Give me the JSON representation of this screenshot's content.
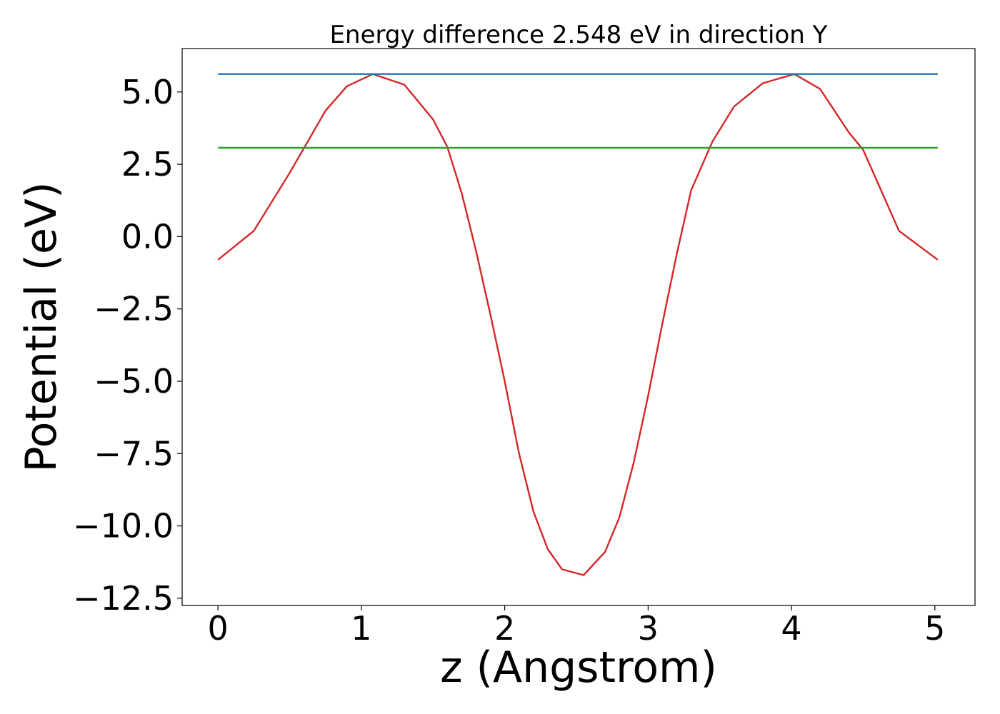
{
  "chart_data": {
    "type": "line",
    "title": "Energy difference 2.548 eV in direction Y",
    "xlabel": "z (Angstrom)",
    "ylabel": "Potential (eV)",
    "xlim": [
      -0.25,
      5.28
    ],
    "ylim": [
      -12.75,
      6.5
    ],
    "xticks": [
      0,
      1,
      2,
      3,
      4,
      5
    ],
    "xtick_labels": [
      "0",
      "1",
      "2",
      "3",
      "4",
      "5"
    ],
    "yticks": [
      5.0,
      2.5,
      0.0,
      -2.5,
      -5.0,
      -7.5,
      -10.0,
      -12.5
    ],
    "ytick_labels": [
      "5.0",
      "2.5",
      "0.0",
      "−2.5",
      "−5.0",
      "−7.5",
      "−10.0",
      "−12.5"
    ],
    "grid": false,
    "legend": null,
    "series": [
      {
        "color": "#d62728",
        "x": [
          0.0,
          0.25,
          0.5,
          0.75,
          0.9,
          1.08,
          1.3,
          1.5,
          1.6,
          1.7,
          1.8,
          1.9,
          2.0,
          2.1,
          2.2,
          2.3,
          2.4,
          2.55,
          2.7,
          2.8,
          2.9,
          3.0,
          3.1,
          3.2,
          3.3,
          3.45,
          3.6,
          3.8,
          4.02,
          4.2,
          4.4,
          4.5,
          4.75,
          5.02
        ],
        "y": [
          -0.8,
          0.2,
          2.2,
          4.35,
          5.2,
          5.62,
          5.25,
          4.05,
          3.1,
          1.5,
          -0.5,
          -2.7,
          -5.0,
          -7.5,
          -9.5,
          -10.8,
          -11.5,
          -11.7,
          -10.9,
          -9.7,
          -7.8,
          -5.5,
          -3.0,
          -0.6,
          1.6,
          3.3,
          4.5,
          5.3,
          5.62,
          5.1,
          3.6,
          3.0,
          0.2,
          -0.8
        ]
      },
      {
        "color": "#1f77b4",
        "x": [
          0.0,
          5.02
        ],
        "y": [
          5.62,
          5.62
        ]
      },
      {
        "color": "#2ca02c",
        "x": [
          0.0,
          5.02
        ],
        "y": [
          3.07,
          3.07
        ]
      }
    ]
  }
}
